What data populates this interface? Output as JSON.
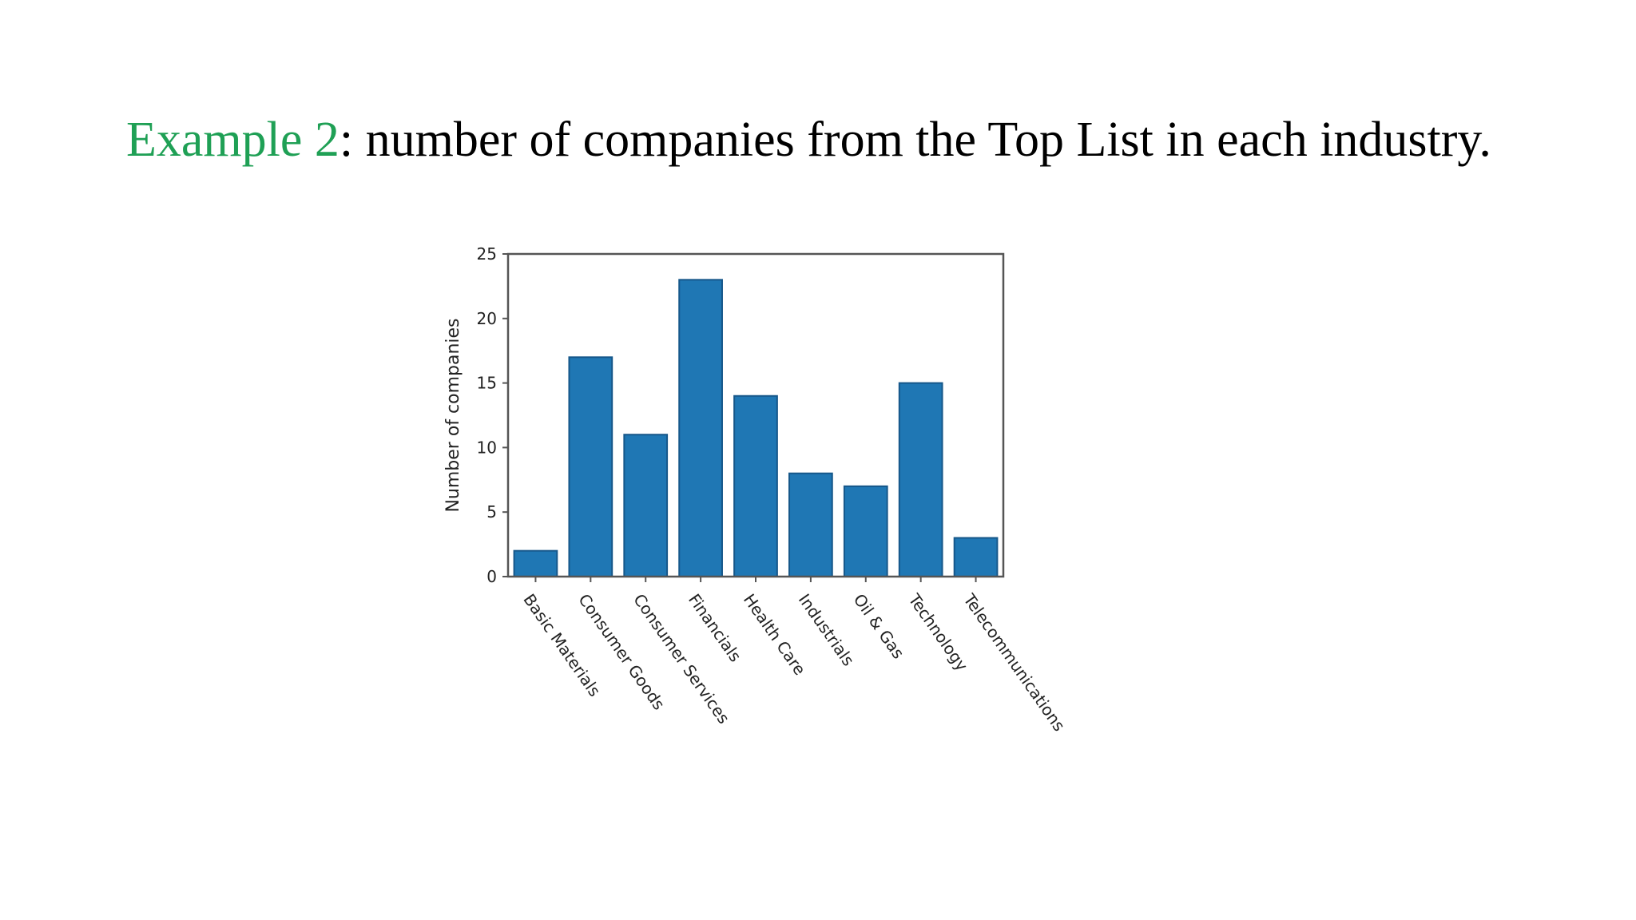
{
  "heading": {
    "prefix": "Example 2",
    "text": ": number of companies from the Top List in each industry."
  },
  "colors": {
    "accent": "#1fa055",
    "bar": "#1f77b4",
    "bar_edge": "#16578a"
  },
  "chart_data": {
    "type": "bar",
    "categories": [
      "Basic Materials",
      "Consumer Goods",
      "Consumer Services",
      "Financials",
      "Health Care",
      "Industrials",
      "Oil & Gas",
      "Technology",
      "Telecommunications"
    ],
    "values": [
      2,
      17,
      11,
      23,
      14,
      8,
      7,
      15,
      3
    ],
    "xlabel": "",
    "ylabel": "Number of companies",
    "ylim": [
      0,
      25
    ],
    "yticks": [
      0,
      5,
      10,
      15,
      20,
      25
    ],
    "grid": false,
    "legend": "none"
  }
}
